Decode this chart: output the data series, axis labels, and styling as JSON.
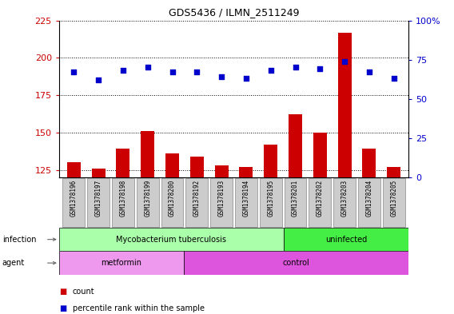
{
  "title": "GDS5436 / ILMN_2511249",
  "samples": [
    "GSM1378196",
    "GSM1378197",
    "GSM1378198",
    "GSM1378199",
    "GSM1378200",
    "GSM1378192",
    "GSM1378193",
    "GSM1378194",
    "GSM1378195",
    "GSM1378201",
    "GSM1378202",
    "GSM1378203",
    "GSM1378204",
    "GSM1378205"
  ],
  "counts": [
    130,
    126,
    139,
    151,
    136,
    134,
    128,
    127,
    142,
    162,
    150,
    217,
    139,
    127
  ],
  "percentiles": [
    67,
    62,
    68,
    70,
    67,
    67,
    64,
    63,
    68,
    70,
    69,
    74,
    67,
    63
  ],
  "bar_color": "#cc0000",
  "dot_color": "#0000cc",
  "ylim_left": [
    120,
    225
  ],
  "ylim_right": [
    0,
    100
  ],
  "yticks_left": [
    125,
    150,
    175,
    200,
    225
  ],
  "yticks_right": [
    0,
    25,
    50,
    75,
    100
  ],
  "infection_groups": [
    {
      "label": "Mycobacterium tuberculosis",
      "start": 0,
      "end": 9,
      "color": "#aaffaa"
    },
    {
      "label": "uninfected",
      "start": 9,
      "end": 14,
      "color": "#44ee44"
    }
  ],
  "agent_groups": [
    {
      "label": "metformin",
      "start": 0,
      "end": 5,
      "color": "#ee99ee"
    },
    {
      "label": "control",
      "start": 5,
      "end": 14,
      "color": "#dd55dd"
    }
  ],
  "background_color": "#ffffff",
  "xticklabel_bg": "#cccccc",
  "grid_linestyle": "dotted",
  "bar_bottom": 120
}
